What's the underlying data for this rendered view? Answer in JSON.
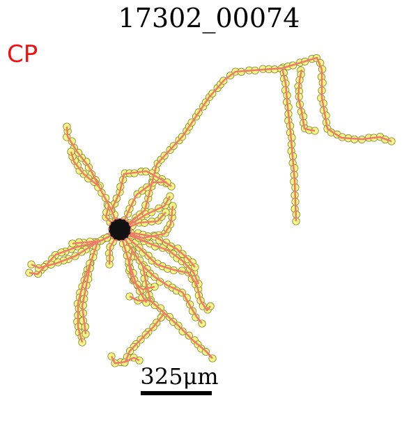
{
  "figure": {
    "title": "17302_00074",
    "label": "CP",
    "label_color": "#ee1111",
    "scale_text": "325μm"
  },
  "style": {
    "branch_color": "#f07b6a",
    "node_fill": "#f7f786",
    "node_stroke": "#8d8d3a",
    "soma_color": "#111111"
  }
}
